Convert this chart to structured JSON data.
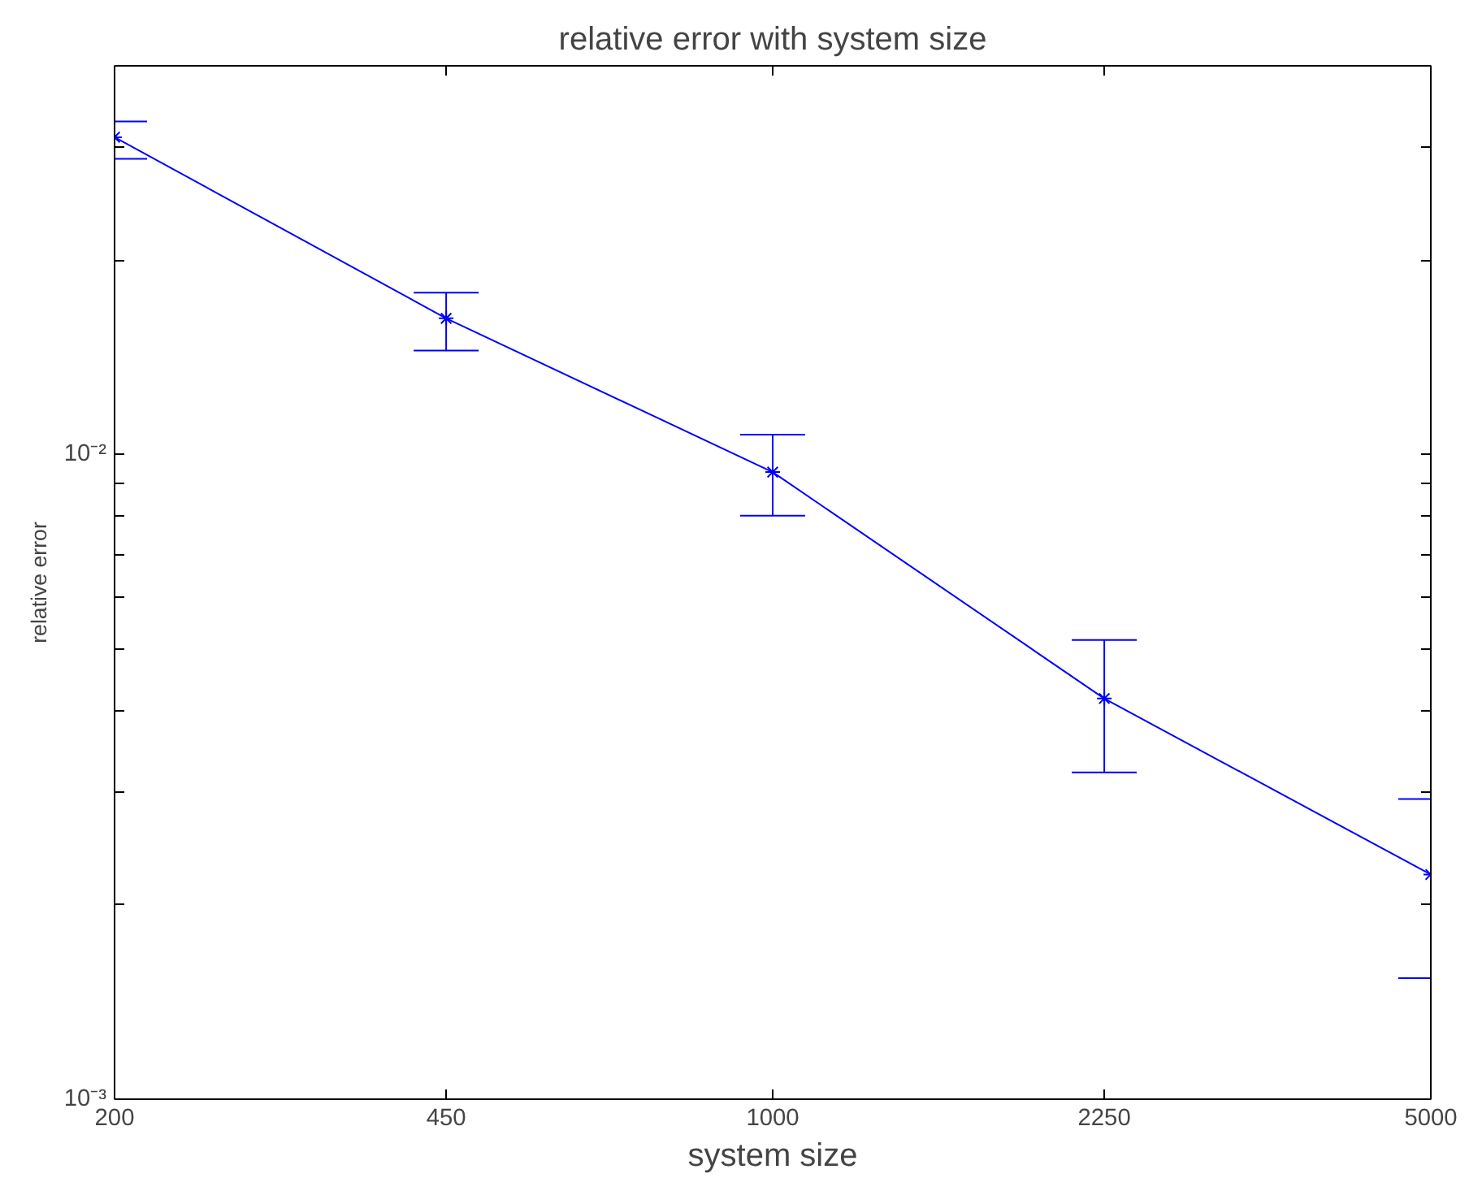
{
  "chart_data": {
    "type": "line",
    "title": "relative error with system size",
    "xlabel": "system size",
    "ylabel": "relative error",
    "x": [
      200,
      450,
      1000,
      2250,
      5000
    ],
    "series": [
      {
        "color": "#0000ff",
        "values": [
          0.031,
          0.01624,
          0.00938,
          0.00418,
          0.00223
        ],
        "errors": [
          [
            0.0287,
            0.0328
          ],
          [
            0.01447,
            0.0178
          ],
          [
            0.00803,
            0.01072
          ],
          [
            0.00321,
            0.00515
          ],
          [
            0.00154,
            0.00292
          ]
        ]
      }
    ],
    "log": "xy",
    "xlim": [
      200,
      5000
    ],
    "xticks": [
      200,
      450,
      1000,
      2250,
      5000
    ],
    "ylim": [
      0.001,
      0.04
    ],
    "yticks": [
      {
        "value": 0.001,
        "label": "10⁻³"
      },
      {
        "value": 0.002,
        "label": null
      },
      {
        "value": 0.003,
        "label": null
      },
      {
        "value": 0.004,
        "label": null
      },
      {
        "value": 0.005,
        "label": null
      },
      {
        "value": 0.006,
        "label": null
      },
      {
        "value": 0.007,
        "label": null
      },
      {
        "value": 0.008,
        "label": null
      },
      {
        "value": 0.009,
        "label": null
      },
      {
        "value": 0.01,
        "label": "10⁻²"
      },
      {
        "value": 0.02,
        "label": null
      },
      {
        "value": 0.03,
        "label": null
      }
    ],
    "marker": "cross",
    "line_style": "solid",
    "grid": false
  }
}
